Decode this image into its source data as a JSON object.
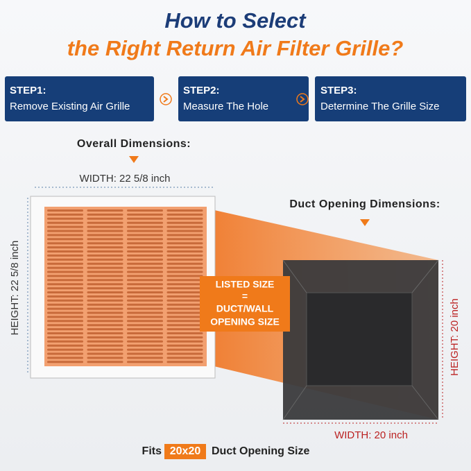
{
  "title": {
    "line1": "How to Select",
    "line2": "the Right Return Air Filter Grille?"
  },
  "steps": [
    {
      "label": "STEP1:",
      "text": "Remove Existing Air Grille"
    },
    {
      "label": "STEP2:",
      "text": "Measure The Hole"
    },
    {
      "label": "STEP3:",
      "text": "Determine The Grille Size"
    }
  ],
  "overall": {
    "heading": "Overall Dimensions:",
    "width": "WIDTH: 22 5/8 inch",
    "height": "HEIGHT: 22 5/8 inch"
  },
  "duct": {
    "heading": "Duct Opening Dimensions:",
    "height": "HEIGHT: 20 inch",
    "width": "WIDTH: 20 inch"
  },
  "callout": [
    "LISTED SIZE",
    "=",
    "DUCT/WALL",
    "OPENING SIZE"
  ],
  "footer": {
    "prefix": "Fits",
    "size": "20x20",
    "suffix": "Duct Opening Size"
  }
}
